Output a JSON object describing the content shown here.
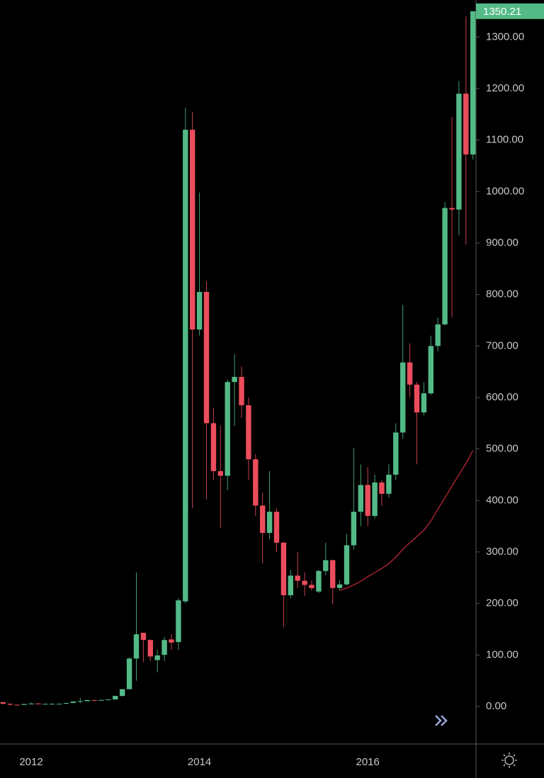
{
  "chart_data": {
    "type": "candlestick",
    "categories": [
      null,
      null,
      null,
      null,
      "2012",
      null,
      null,
      null,
      null,
      null,
      null,
      null,
      null,
      null,
      null,
      null,
      null,
      null,
      null,
      null,
      null,
      null,
      null,
      null,
      null,
      null,
      null,
      null,
      "2014",
      null,
      null,
      null,
      null,
      null,
      null,
      null,
      null,
      null,
      null,
      null,
      null,
      null,
      null,
      null,
      null,
      null,
      null,
      null,
      null,
      null,
      null,
      null,
      "2016",
      null,
      null,
      null,
      null,
      null,
      null,
      null,
      null,
      null,
      null,
      null,
      null,
      null,
      null,
      null
    ],
    "open": [
      8.2,
      5.1,
      3.3,
      3.0,
      4.7,
      5.5,
      4.9,
      4.9,
      5.0,
      5.1,
      6.7,
      9.4,
      10.2,
      12.4,
      11.2,
      12.6,
      13.5,
      20.4,
      33.4,
      93,
      143,
      129,
      90,
      100,
      130,
      125,
      204,
      1120,
      732,
      805,
      550,
      457,
      448,
      630,
      640,
      585,
      480,
      390,
      337,
      378,
      318,
      216,
      254,
      244,
      236,
      223,
      263,
      284,
      230,
      237,
      313,
      378,
      430,
      370,
      435,
      413,
      450,
      532,
      668,
      625,
      571,
      608,
      700,
      742,
      968,
      965,
      1190,
      1072
    ],
    "high": [
      8.9,
      5.4,
      3.7,
      4.8,
      7.2,
      6.3,
      5.5,
      5.4,
      5.2,
      6.8,
      9.7,
      16.4,
      12.5,
      12.9,
      12.6,
      13.9,
      20.4,
      34,
      95,
      260,
      143,
      130,
      110,
      135,
      140,
      210,
      1163,
      1155,
      998,
      825,
      580,
      545,
      635,
      684,
      660,
      600,
      490,
      415,
      457,
      385,
      320,
      265,
      300,
      260,
      245,
      265,
      318,
      285,
      245,
      335,
      502,
      470,
      465,
      450,
      440,
      470,
      550,
      780,
      705,
      630,
      630,
      720,
      755,
      980,
      1145,
      1215,
      1340,
      1350.21
    ],
    "low": [
      4.4,
      2.2,
      2.0,
      2.8,
      4.3,
      4.2,
      4.3,
      4.7,
      4.9,
      5.1,
      6.5,
      7.1,
      10.0,
      9.9,
      10.5,
      12.4,
      13.0,
      19.1,
      33.0,
      50,
      86,
      88,
      66,
      88,
      110,
      110,
      200,
      385,
      720,
      402,
      440,
      347,
      420,
      545,
      560,
      440,
      370,
      278,
      325,
      300,
      154,
      210,
      230,
      215,
      225,
      220,
      255,
      198,
      225,
      235,
      305,
      350,
      350,
      365,
      390,
      405,
      440,
      520,
      600,
      470,
      565,
      605,
      690,
      740,
      756,
      915,
      897,
      1062
    ],
    "close": [
      5.1,
      3.3,
      3.0,
      4.7,
      5.5,
      4.9,
      4.9,
      5.0,
      5.1,
      6.7,
      9.4,
      10.2,
      12.4,
      11.2,
      12.6,
      13.5,
      20.4,
      33.4,
      93,
      140,
      129,
      97,
      99,
      129,
      124,
      206,
      1120,
      732,
      805,
      550,
      457,
      448,
      630,
      640,
      585,
      480,
      390,
      337,
      378,
      318,
      216,
      254,
      244,
      236,
      230,
      263,
      284,
      230,
      237,
      313,
      378,
      430,
      370,
      435,
      413,
      450,
      532,
      668,
      625,
      571,
      608,
      700,
      742,
      968,
      965,
      1190,
      1072,
      1350.21
    ],
    "up_color": "#53b987",
    "down_color": "#eb4d5c",
    "moving_average": {
      "color": "#a3232e",
      "values": [
        null,
        null,
        null,
        null,
        null,
        null,
        null,
        null,
        null,
        null,
        null,
        null,
        null,
        null,
        null,
        null,
        null,
        null,
        null,
        null,
        null,
        null,
        null,
        null,
        null,
        null,
        null,
        null,
        null,
        null,
        null,
        null,
        null,
        null,
        null,
        null,
        null,
        null,
        null,
        null,
        null,
        null,
        null,
        null,
        null,
        null,
        null,
        null,
        225,
        230,
        236,
        243,
        252,
        260,
        268,
        277,
        290,
        305,
        318,
        330,
        342,
        360,
        383,
        405,
        428,
        450,
        472,
        497
      ]
    },
    "ylim": [
      -73,
      1372
    ],
    "yticks": [
      {
        "value": 0,
        "label": "0.00"
      },
      {
        "value": 100,
        "label": "100.00"
      },
      {
        "value": 200,
        "label": "200.00"
      },
      {
        "value": 300,
        "label": "300.00"
      },
      {
        "value": 400,
        "label": "400.00"
      },
      {
        "value": 500,
        "label": "500.00"
      },
      {
        "value": 600,
        "label": "600.00"
      },
      {
        "value": 700,
        "label": "700.00"
      },
      {
        "value": 800,
        "label": "800.00"
      },
      {
        "value": 900,
        "label": "900.00"
      },
      {
        "value": 1000,
        "label": "1000.00"
      },
      {
        "value": 1100,
        "label": "1100.00"
      },
      {
        "value": 1200,
        "label": "1200.00"
      },
      {
        "value": 1300,
        "label": "1300.00"
      }
    ],
    "last_price": 1350.21
  }
}
